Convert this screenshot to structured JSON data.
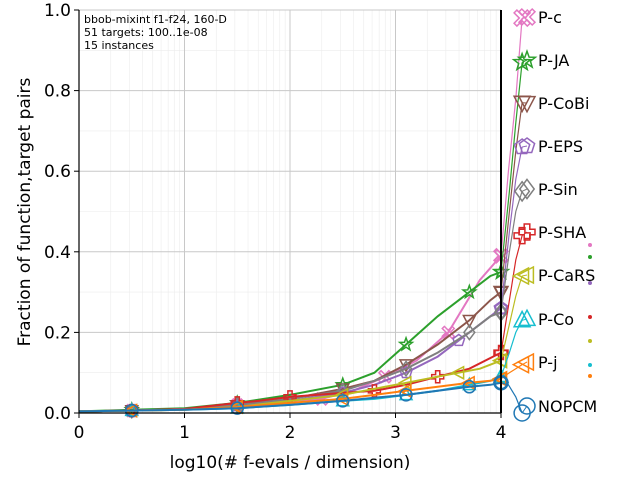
{
  "chart_data": {
    "type": "line",
    "title": "",
    "xlabel": "log10(# f-evals / dimension)",
    "ylabel": "Fraction of function,target pairs",
    "xlim": [
      0,
      4
    ],
    "ylim": [
      0,
      1
    ],
    "xticks": [
      "0",
      "1",
      "2",
      "3",
      "4"
    ],
    "yticks": [
      "0.0",
      "0.2",
      "0.4",
      "0.6",
      "0.8",
      "1.0"
    ],
    "grid": true,
    "info_lines": [
      "bbob-mixint f1-f24, 160-D",
      "51 targets: 100..1e-08",
      "15 instances"
    ],
    "series": [
      {
        "name": "P-c",
        "color": "#e377c2",
        "marker": "x-box",
        "points": [
          [
            0.0,
            0.004
          ],
          [
            0.5,
            0.006
          ],
          [
            1.0,
            0.01
          ],
          [
            1.5,
            0.02
          ],
          [
            2.0,
            0.03
          ],
          [
            2.3,
            0.035
          ],
          [
            2.6,
            0.055
          ],
          [
            2.9,
            0.09
          ],
          [
            3.2,
            0.13
          ],
          [
            3.5,
            0.2
          ],
          [
            3.8,
            0.33
          ],
          [
            4.0,
            0.39
          ]
        ],
        "end": [
          [
            4.0,
            0.39
          ],
          [
            4.07,
            0.6
          ],
          [
            4.14,
            0.78
          ],
          [
            4.2,
            0.98
          ]
        ]
      },
      {
        "name": "P-JA",
        "color": "#2ca02c",
        "marker": "star",
        "points": [
          [
            0.0,
            0.004
          ],
          [
            0.5,
            0.008
          ],
          [
            1.0,
            0.012
          ],
          [
            1.5,
            0.025
          ],
          [
            2.0,
            0.045
          ],
          [
            2.5,
            0.07
          ],
          [
            2.8,
            0.1
          ],
          [
            3.1,
            0.17
          ],
          [
            3.4,
            0.24
          ],
          [
            3.7,
            0.3
          ],
          [
            3.9,
            0.34
          ],
          [
            4.0,
            0.35
          ]
        ],
        "end": [
          [
            4.0,
            0.35
          ],
          [
            4.08,
            0.55
          ],
          [
            4.14,
            0.72
          ],
          [
            4.2,
            0.87
          ]
        ]
      },
      {
        "name": "P-CoBi",
        "color": "#8c564b",
        "marker": "tri-down",
        "points": [
          [
            0.0,
            0.004
          ],
          [
            0.5,
            0.006
          ],
          [
            1.0,
            0.01
          ],
          [
            1.5,
            0.018
          ],
          [
            2.0,
            0.035
          ],
          [
            2.5,
            0.06
          ],
          [
            2.8,
            0.08
          ],
          [
            3.1,
            0.12
          ],
          [
            3.4,
            0.17
          ],
          [
            3.7,
            0.23
          ],
          [
            3.9,
            0.28
          ],
          [
            4.0,
            0.3
          ]
        ],
        "end": [
          [
            4.0,
            0.3
          ],
          [
            4.08,
            0.5
          ],
          [
            4.14,
            0.65
          ],
          [
            4.2,
            0.77
          ]
        ]
      },
      {
        "name": "P-EPS",
        "color": "#9467bd",
        "marker": "pentagon",
        "points": [
          [
            0.0,
            0.004
          ],
          [
            0.5,
            0.006
          ],
          [
            1.0,
            0.01
          ],
          [
            1.5,
            0.018
          ],
          [
            2.0,
            0.03
          ],
          [
            2.5,
            0.05
          ],
          [
            2.8,
            0.07
          ],
          [
            3.1,
            0.1
          ],
          [
            3.4,
            0.14
          ],
          [
            3.6,
            0.18
          ],
          [
            3.8,
            0.22
          ],
          [
            4.0,
            0.26
          ]
        ],
        "end": [
          [
            4.0,
            0.26
          ],
          [
            4.08,
            0.45
          ],
          [
            4.14,
            0.58
          ],
          [
            4.2,
            0.66
          ]
        ]
      },
      {
        "name": "P-Sin",
        "color": "#7f7f7f",
        "marker": "diamond",
        "points": [
          [
            0.0,
            0.004
          ],
          [
            0.5,
            0.006
          ],
          [
            1.0,
            0.01
          ],
          [
            1.5,
            0.02
          ],
          [
            2.0,
            0.035
          ],
          [
            2.5,
            0.055
          ],
          [
            2.8,
            0.08
          ],
          [
            3.1,
            0.11
          ],
          [
            3.4,
            0.15
          ],
          [
            3.7,
            0.2
          ],
          [
            3.9,
            0.24
          ],
          [
            4.0,
            0.25
          ]
        ],
        "end": [
          [
            4.0,
            0.25
          ],
          [
            4.08,
            0.4
          ],
          [
            4.14,
            0.5
          ],
          [
            4.2,
            0.55
          ]
        ]
      },
      {
        "name": "P-SHA",
        "color": "#d62728",
        "marker": "plus",
        "points": [
          [
            0.0,
            0.004
          ],
          [
            0.5,
            0.006
          ],
          [
            1.0,
            0.01
          ],
          [
            1.5,
            0.025
          ],
          [
            1.7,
            0.03
          ],
          [
            2.0,
            0.04
          ],
          [
            2.5,
            0.05
          ],
          [
            2.8,
            0.055
          ],
          [
            3.1,
            0.07
          ],
          [
            3.4,
            0.09
          ],
          [
            3.7,
            0.11
          ],
          [
            4.0,
            0.15
          ]
        ],
        "end": [
          [
            4.0,
            0.15
          ],
          [
            4.08,
            0.28
          ],
          [
            4.14,
            0.38
          ],
          [
            4.2,
            0.44
          ]
        ]
      },
      {
        "name": "P-CaRS",
        "color": "#bcbd22",
        "marker": "tri-left",
        "points": [
          [
            0.0,
            0.004
          ],
          [
            0.5,
            0.006
          ],
          [
            1.0,
            0.008
          ],
          [
            1.5,
            0.015
          ],
          [
            2.0,
            0.03
          ],
          [
            2.5,
            0.045
          ],
          [
            2.8,
            0.06
          ],
          [
            3.1,
            0.075
          ],
          [
            3.4,
            0.09
          ],
          [
            3.6,
            0.1
          ],
          [
            3.8,
            0.11
          ],
          [
            4.0,
            0.13
          ]
        ],
        "end": [
          [
            4.0,
            0.13
          ],
          [
            4.08,
            0.22
          ],
          [
            4.14,
            0.29
          ],
          [
            4.2,
            0.34
          ]
        ]
      },
      {
        "name": "P-Co",
        "color": "#17becf",
        "marker": "tri-up",
        "points": [
          [
            0.0,
            0.004
          ],
          [
            0.5,
            0.006
          ],
          [
            1.0,
            0.008
          ],
          [
            1.5,
            0.012
          ],
          [
            2.0,
            0.02
          ],
          [
            2.5,
            0.03
          ],
          [
            2.8,
            0.035
          ],
          [
            3.1,
            0.045
          ],
          [
            3.4,
            0.055
          ],
          [
            3.7,
            0.07
          ],
          [
            3.9,
            0.08
          ],
          [
            4.0,
            0.09
          ]
        ],
        "end": [
          [
            4.0,
            0.09
          ],
          [
            4.08,
            0.15
          ],
          [
            4.14,
            0.2
          ],
          [
            4.2,
            0.23
          ]
        ]
      },
      {
        "name": "P-j",
        "color": "#ff7f0e",
        "marker": "tri-left-open",
        "points": [
          [
            0.0,
            0.004
          ],
          [
            0.5,
            0.006
          ],
          [
            1.0,
            0.008
          ],
          [
            1.5,
            0.015
          ],
          [
            2.0,
            0.025
          ],
          [
            2.5,
            0.035
          ],
          [
            2.8,
            0.045
          ],
          [
            3.1,
            0.055
          ],
          [
            3.4,
            0.065
          ],
          [
            3.7,
            0.075
          ],
          [
            3.9,
            0.08
          ],
          [
            4.0,
            0.085
          ]
        ],
        "end": [
          [
            4.0,
            0.085
          ],
          [
            4.08,
            0.1
          ],
          [
            4.14,
            0.11
          ],
          [
            4.2,
            0.12
          ]
        ]
      },
      {
        "name": "NOPCM",
        "color": "#1f77b4",
        "marker": "circle",
        "points": [
          [
            0.0,
            0.004
          ],
          [
            0.5,
            0.006
          ],
          [
            1.0,
            0.008
          ],
          [
            1.5,
            0.012
          ],
          [
            2.0,
            0.02
          ],
          [
            2.5,
            0.03
          ],
          [
            2.8,
            0.038
          ],
          [
            3.1,
            0.045
          ],
          [
            3.4,
            0.055
          ],
          [
            3.7,
            0.065
          ],
          [
            3.9,
            0.07
          ],
          [
            4.0,
            0.075
          ]
        ],
        "end": [
          [
            4.0,
            0.075
          ],
          [
            4.07,
            0.07
          ],
          [
            4.14,
            0.04
          ],
          [
            4.2,
            0.0
          ]
        ]
      }
    ],
    "right_dots": [
      "#e377c2",
      "#2ca02c",
      "#9467bd",
      "#d62728",
      "#bcbd22",
      "#17becf",
      "#ff7f0e"
    ]
  }
}
